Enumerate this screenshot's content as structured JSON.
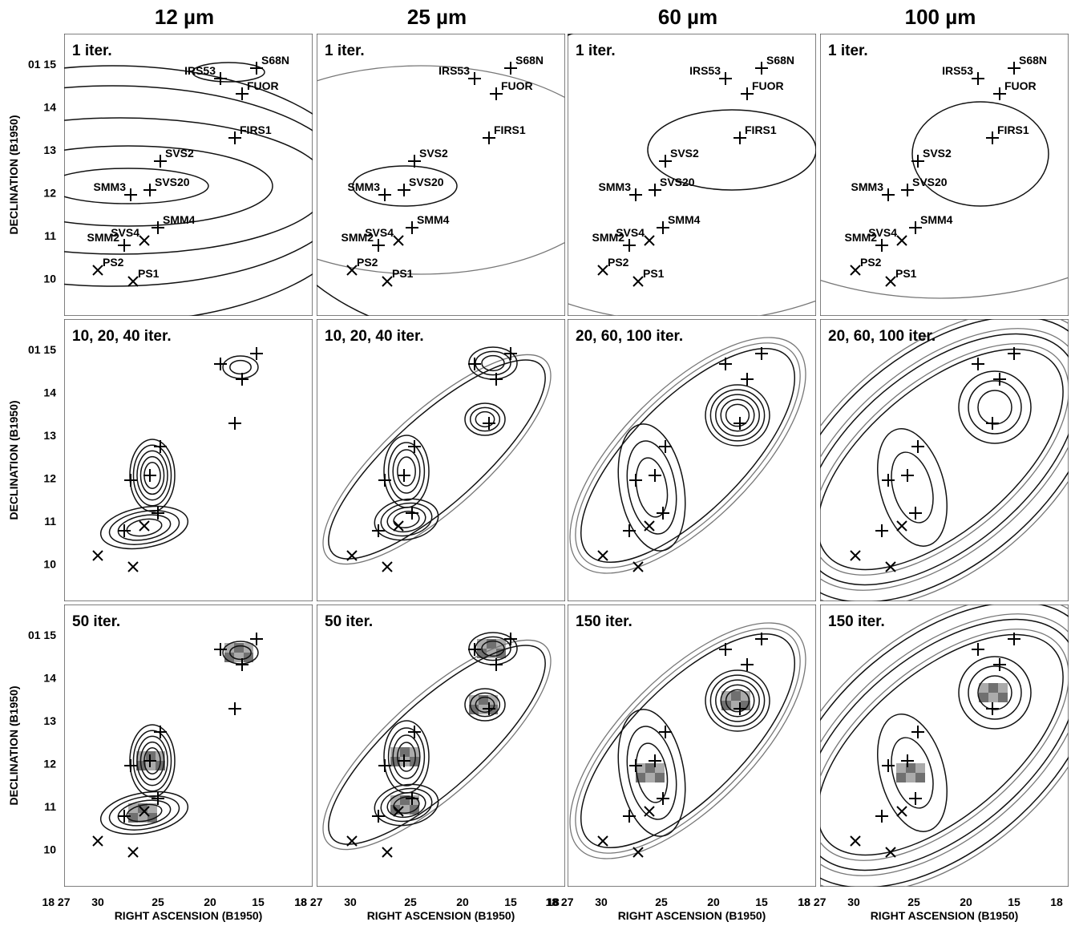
{
  "columns": [
    "12 µm",
    "25 µm",
    "60 µm",
    "100 µm"
  ],
  "panel_labels": [
    [
      "1 iter.",
      "1 iter.",
      "1 iter.",
      "1 iter."
    ],
    [
      "10, 20, 40 iter.",
      "10, 20, 40 iter.",
      "20, 60, 100 iter.",
      "20, 60, 100 iter."
    ],
    [
      "50 iter.",
      "50 iter.",
      "150 iter.",
      "150 iter."
    ]
  ],
  "sources": [
    "S68N",
    "IRS53",
    "FUOR",
    "FIRS1",
    "SVS2",
    "SVS20",
    "SMM3",
    "SMM4",
    "SVS4",
    "SMM2",
    "PS2",
    "PS1"
  ],
  "y_axis": {
    "label": "DECLINATION (B1950)",
    "ticks": [
      "01 15",
      "14",
      "13",
      "12",
      "11",
      "10"
    ]
  },
  "x_axis": {
    "label": "RIGHT ASCENSION (B1950)",
    "ticks": [
      "18 27",
      "30",
      "25",
      "20",
      "15",
      "18"
    ]
  }
}
